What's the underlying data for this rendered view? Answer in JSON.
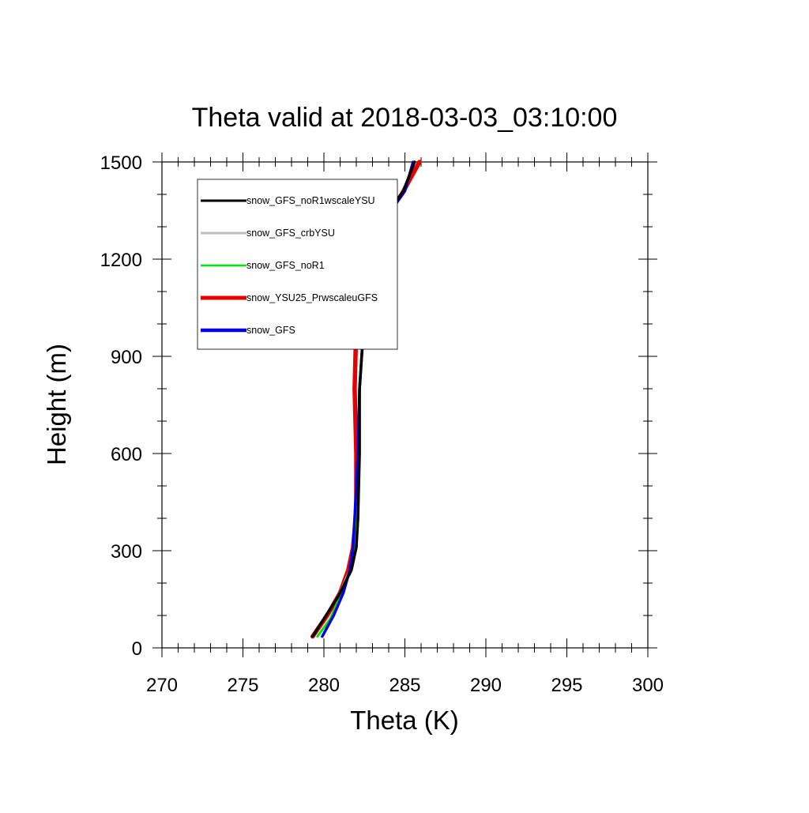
{
  "chart_data": {
    "type": "line",
    "title": "Theta valid at 2018-03-03_03:10:00",
    "xlabel": "Theta (K)",
    "ylabel": "Height (m)",
    "xlim": [
      270,
      300
    ],
    "ylim": [
      0,
      1500
    ],
    "xticks": [
      270,
      275,
      280,
      285,
      290,
      295,
      300
    ],
    "yticks": [
      0,
      300,
      600,
      900,
      1200,
      1500
    ],
    "x_minor_step": 1,
    "y_minor_step": 100,
    "grid": false,
    "legend_position": "top-left",
    "series": [
      {
        "name": "snow_GFS_noR1wscaleYSU",
        "color": "#000000",
        "points": [
          [
            279.3,
            35
          ],
          [
            280.0,
            90
          ],
          [
            280.9,
            160
          ],
          [
            281.7,
            240
          ],
          [
            282.0,
            310
          ],
          [
            282.1,
            400
          ],
          [
            282.2,
            600
          ],
          [
            282.2,
            800
          ],
          [
            282.4,
            950
          ],
          [
            282.9,
            1150
          ],
          [
            283.4,
            1300
          ],
          [
            284.9,
            1410
          ],
          [
            285.6,
            1500
          ]
        ]
      },
      {
        "name": "snow_GFS_crbYSU",
        "color": "#bdbdbd",
        "points": [
          [
            279.3,
            35
          ],
          [
            280.0,
            90
          ],
          [
            280.9,
            160
          ],
          [
            281.6,
            240
          ],
          [
            281.9,
            310
          ],
          [
            282.0,
            400
          ],
          [
            282.1,
            600
          ],
          [
            282.2,
            800
          ],
          [
            282.4,
            950
          ],
          [
            282.9,
            1150
          ],
          [
            283.4,
            1300
          ],
          [
            284.9,
            1410
          ],
          [
            285.6,
            1500
          ]
        ]
      },
      {
        "name": "snow_GFS_noR1",
        "color": "#00e600",
        "points": [
          [
            279.6,
            35
          ],
          [
            280.4,
            90
          ],
          [
            281.0,
            160
          ],
          [
            281.6,
            240
          ],
          [
            281.9,
            310
          ],
          [
            282.0,
            400
          ],
          [
            282.1,
            600
          ],
          [
            282.2,
            800
          ],
          [
            282.4,
            950
          ],
          [
            282.9,
            1150
          ],
          [
            283.4,
            1300
          ],
          [
            284.9,
            1410
          ],
          [
            285.6,
            1500
          ]
        ]
      },
      {
        "name": "snow_YSU25_PrwscaleuGFS",
        "color": "#e60000",
        "points": [
          [
            279.3,
            35
          ],
          [
            280.2,
            100
          ],
          [
            281.0,
            170
          ],
          [
            281.5,
            240
          ],
          [
            281.8,
            310
          ],
          [
            282.0,
            420
          ],
          [
            282.0,
            600
          ],
          [
            281.9,
            800
          ],
          [
            282.0,
            1000
          ],
          [
            282.6,
            1200
          ],
          [
            283.4,
            1300
          ],
          [
            284.8,
            1400
          ],
          [
            285.9,
            1500
          ]
        ]
      },
      {
        "name": "snow_GFS",
        "color": "#0000e6",
        "points": [
          [
            279.9,
            35
          ],
          [
            280.6,
            100
          ],
          [
            281.2,
            170
          ],
          [
            281.6,
            240
          ],
          [
            281.8,
            310
          ],
          [
            281.9,
            400
          ],
          [
            282.1,
            600
          ],
          [
            282.2,
            800
          ],
          [
            282.4,
            950
          ],
          [
            282.9,
            1150
          ],
          [
            283.4,
            1300
          ],
          [
            285.0,
            1410
          ],
          [
            285.5,
            1500
          ]
        ]
      }
    ]
  }
}
